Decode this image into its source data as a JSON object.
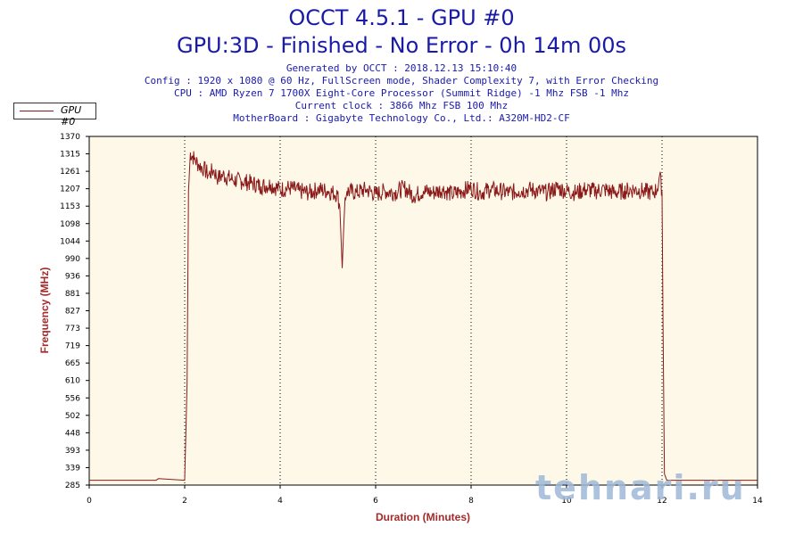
{
  "header": {
    "title": "OCCT 4.5.1 - GPU #0",
    "subtitle": "GPU:3D - Finished - No Error - 0h 14m 00s",
    "info_lines": [
      "Generated by OCCT : 2018.12.13 15:10:40",
      "Config : 1920 x 1080 @ 60 Hz, FullScreen mode, Shader Complexity 7, with Error Checking",
      "CPU : AMD Ryzen 7 1700X Eight-Core Processor (Summit Ridge) -1 Mhz FSB -1 Mhz",
      "Current clock : 3866 Mhz FSB 100 Mhz",
      "MotherBoard : Gigabyte Technology Co., Ltd.: A320M-HD2-CF"
    ]
  },
  "watermark": "tehnari.ru",
  "colors": {
    "line": "#8b1a1a",
    "title": "#1a1aa8",
    "axis_label": "#a52a2a",
    "plot_bg": "#fdf8e8"
  },
  "chart_data": {
    "type": "line",
    "title": "OCCT 4.5.1 - GPU #0",
    "xlabel": "Duration (Minutes)",
    "ylabel": "Frequency (MHz)",
    "xlim": [
      0,
      14
    ],
    "ylim": [
      285,
      1370
    ],
    "x_ticks": [
      "0",
      "2",
      "4",
      "6",
      "8",
      "10",
      "12",
      "14"
    ],
    "y_ticks": [
      "1370",
      "1315",
      "1261",
      "1207",
      "1153",
      "1098",
      "1044",
      "990",
      "936",
      "881",
      "827",
      "773",
      "719",
      "665",
      "610",
      "556",
      "502",
      "448",
      "393",
      "339",
      "285"
    ],
    "grid": "vertical dotted",
    "legend": "top-left",
    "series": [
      {
        "name": "GPU #0",
        "x": [
          0,
          1.0,
          1.4,
          1.45,
          2.0,
          2.05,
          2.08,
          2.12,
          2.2,
          2.3,
          2.4,
          2.5,
          2.6,
          2.7,
          2.8,
          3.0,
          3.2,
          3.4,
          3.6,
          3.8,
          4.0,
          4.2,
          4.4,
          4.6,
          4.8,
          5.0,
          5.2,
          5.25,
          5.3,
          5.33,
          5.36,
          5.4,
          5.6,
          5.8,
          6.0,
          6.2,
          6.4,
          6.6,
          6.8,
          7.0,
          7.2,
          7.4,
          7.6,
          7.8,
          8.0,
          8.2,
          8.4,
          8.6,
          8.8,
          9.0,
          9.2,
          9.4,
          9.6,
          9.8,
          10.0,
          10.2,
          10.4,
          10.6,
          10.8,
          11.0,
          11.2,
          11.4,
          11.6,
          11.8,
          11.9,
          11.95,
          12.0,
          12.02,
          12.05,
          12.1,
          12.5,
          13.0,
          14.0
        ],
        "values": [
          300,
          300,
          300,
          305,
          300,
          600,
          1200,
          1320,
          1300,
          1280,
          1270,
          1250,
          1265,
          1240,
          1250,
          1235,
          1230,
          1225,
          1215,
          1220,
          1205,
          1210,
          1200,
          1195,
          1205,
          1200,
          1190,
          1150,
          960,
          1080,
          1180,
          1200,
          1195,
          1205,
          1190,
          1200,
          1195,
          1210,
          1185,
          1200,
          1195,
          1205,
          1190,
          1200,
          1210,
          1195,
          1205,
          1200,
          1195,
          1200,
          1205,
          1200,
          1195,
          1210,
          1200,
          1195,
          1205,
          1200,
          1205,
          1195,
          1200,
          1205,
          1200,
          1195,
          1205,
          1250,
          1200,
          800,
          320,
          300,
          300,
          300,
          300
        ]
      }
    ]
  }
}
